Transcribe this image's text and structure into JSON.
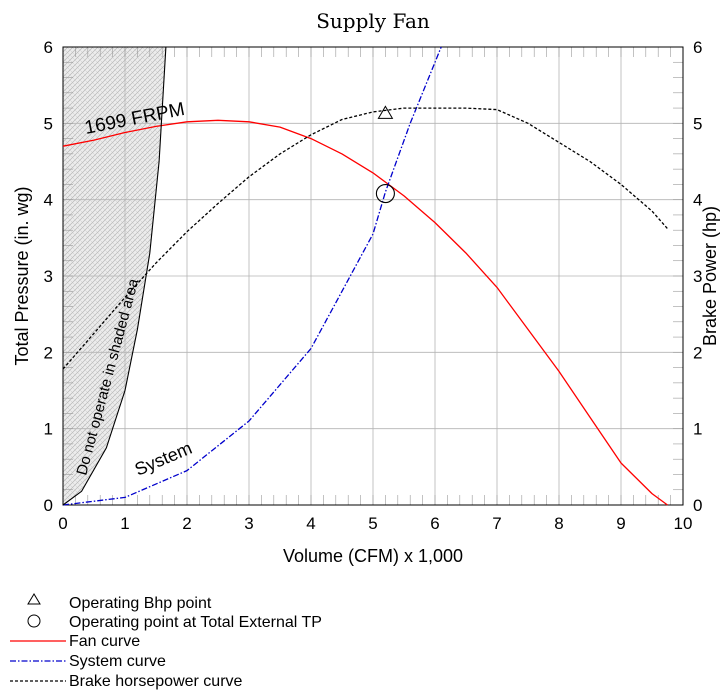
{
  "chart_data": {
    "type": "line",
    "title": "Supply Fan",
    "xlabel": "Volume (CFM) x 1,000",
    "ylabel": "Total Pressure (in. wg)",
    "y2label": "Brake Power (hp)",
    "xlim": [
      0,
      10
    ],
    "ylim": [
      0,
      6
    ],
    "y2lim": [
      0,
      6
    ],
    "x_ticks": [
      "0",
      "1",
      "2",
      "3",
      "4",
      "5",
      "6",
      "7",
      "8",
      "9",
      "10"
    ],
    "y_ticks": [
      "0",
      "1",
      "2",
      "3",
      "4",
      "5",
      "6"
    ],
    "y2_ticks": [
      "0",
      "1",
      "2",
      "3",
      "4",
      "5",
      "6"
    ],
    "grid": true,
    "annotations": {
      "rpm": "1699  FRPM",
      "shaded": "Do  not  operate  in  shaded   area",
      "system": "System"
    },
    "series": [
      {
        "name": "Fan curve",
        "color": "#ff0000",
        "style": "solid",
        "x": [
          0,
          0.5,
          1,
          1.5,
          2,
          2.5,
          3,
          3.5,
          4,
          4.5,
          5,
          5.5,
          6,
          6.5,
          7,
          7.5,
          8,
          8.5,
          9,
          9.5,
          9.75
        ],
        "y": [
          4.7,
          4.78,
          4.88,
          4.96,
          5.02,
          5.04,
          5.02,
          4.95,
          4.8,
          4.6,
          4.35,
          4.05,
          3.7,
          3.3,
          2.85,
          2.3,
          1.75,
          1.15,
          0.55,
          0.15,
          0.0
        ]
      },
      {
        "name": "System curve",
        "color": "#0000cc",
        "style": "dash-dot",
        "x": [
          0,
          1,
          2,
          3,
          4,
          5,
          5.2,
          5.6,
          6.1
        ],
        "y": [
          0,
          0.1,
          0.45,
          1.1,
          2.05,
          3.55,
          4.1,
          5.0,
          6.0
        ]
      },
      {
        "name": "Brake horsepower curve",
        "color": "#000000",
        "style": "dashed",
        "x": [
          0,
          0.5,
          1,
          1.5,
          2,
          2.5,
          3,
          3.5,
          4,
          4.5,
          5,
          5.5,
          6,
          6.5,
          7,
          7.5,
          8,
          8.5,
          9,
          9.5,
          9.75
        ],
        "y": [
          1.78,
          2.25,
          2.72,
          3.17,
          3.58,
          3.95,
          4.3,
          4.6,
          4.85,
          5.05,
          5.15,
          5.2,
          5.2,
          5.2,
          5.18,
          5.0,
          4.75,
          4.5,
          4.2,
          3.85,
          3.62
        ]
      }
    ],
    "shaded_boundary": {
      "x": [
        0,
        0.3,
        0.7,
        1.0,
        1.2,
        1.4,
        1.55,
        1.66
      ],
      "y": [
        0,
        0.18,
        0.75,
        1.5,
        2.3,
        3.3,
        4.5,
        6.0
      ]
    },
    "points": {
      "operating_bhp": {
        "x": 5.2,
        "y": 5.13
      },
      "operating_tp": {
        "x": 5.2,
        "y": 4.08
      }
    }
  },
  "legend": {
    "items": [
      "Operating Bhp point",
      "Operating point at Total External TP",
      "Fan curve",
      "System curve",
      "Brake horsepower curve"
    ]
  }
}
